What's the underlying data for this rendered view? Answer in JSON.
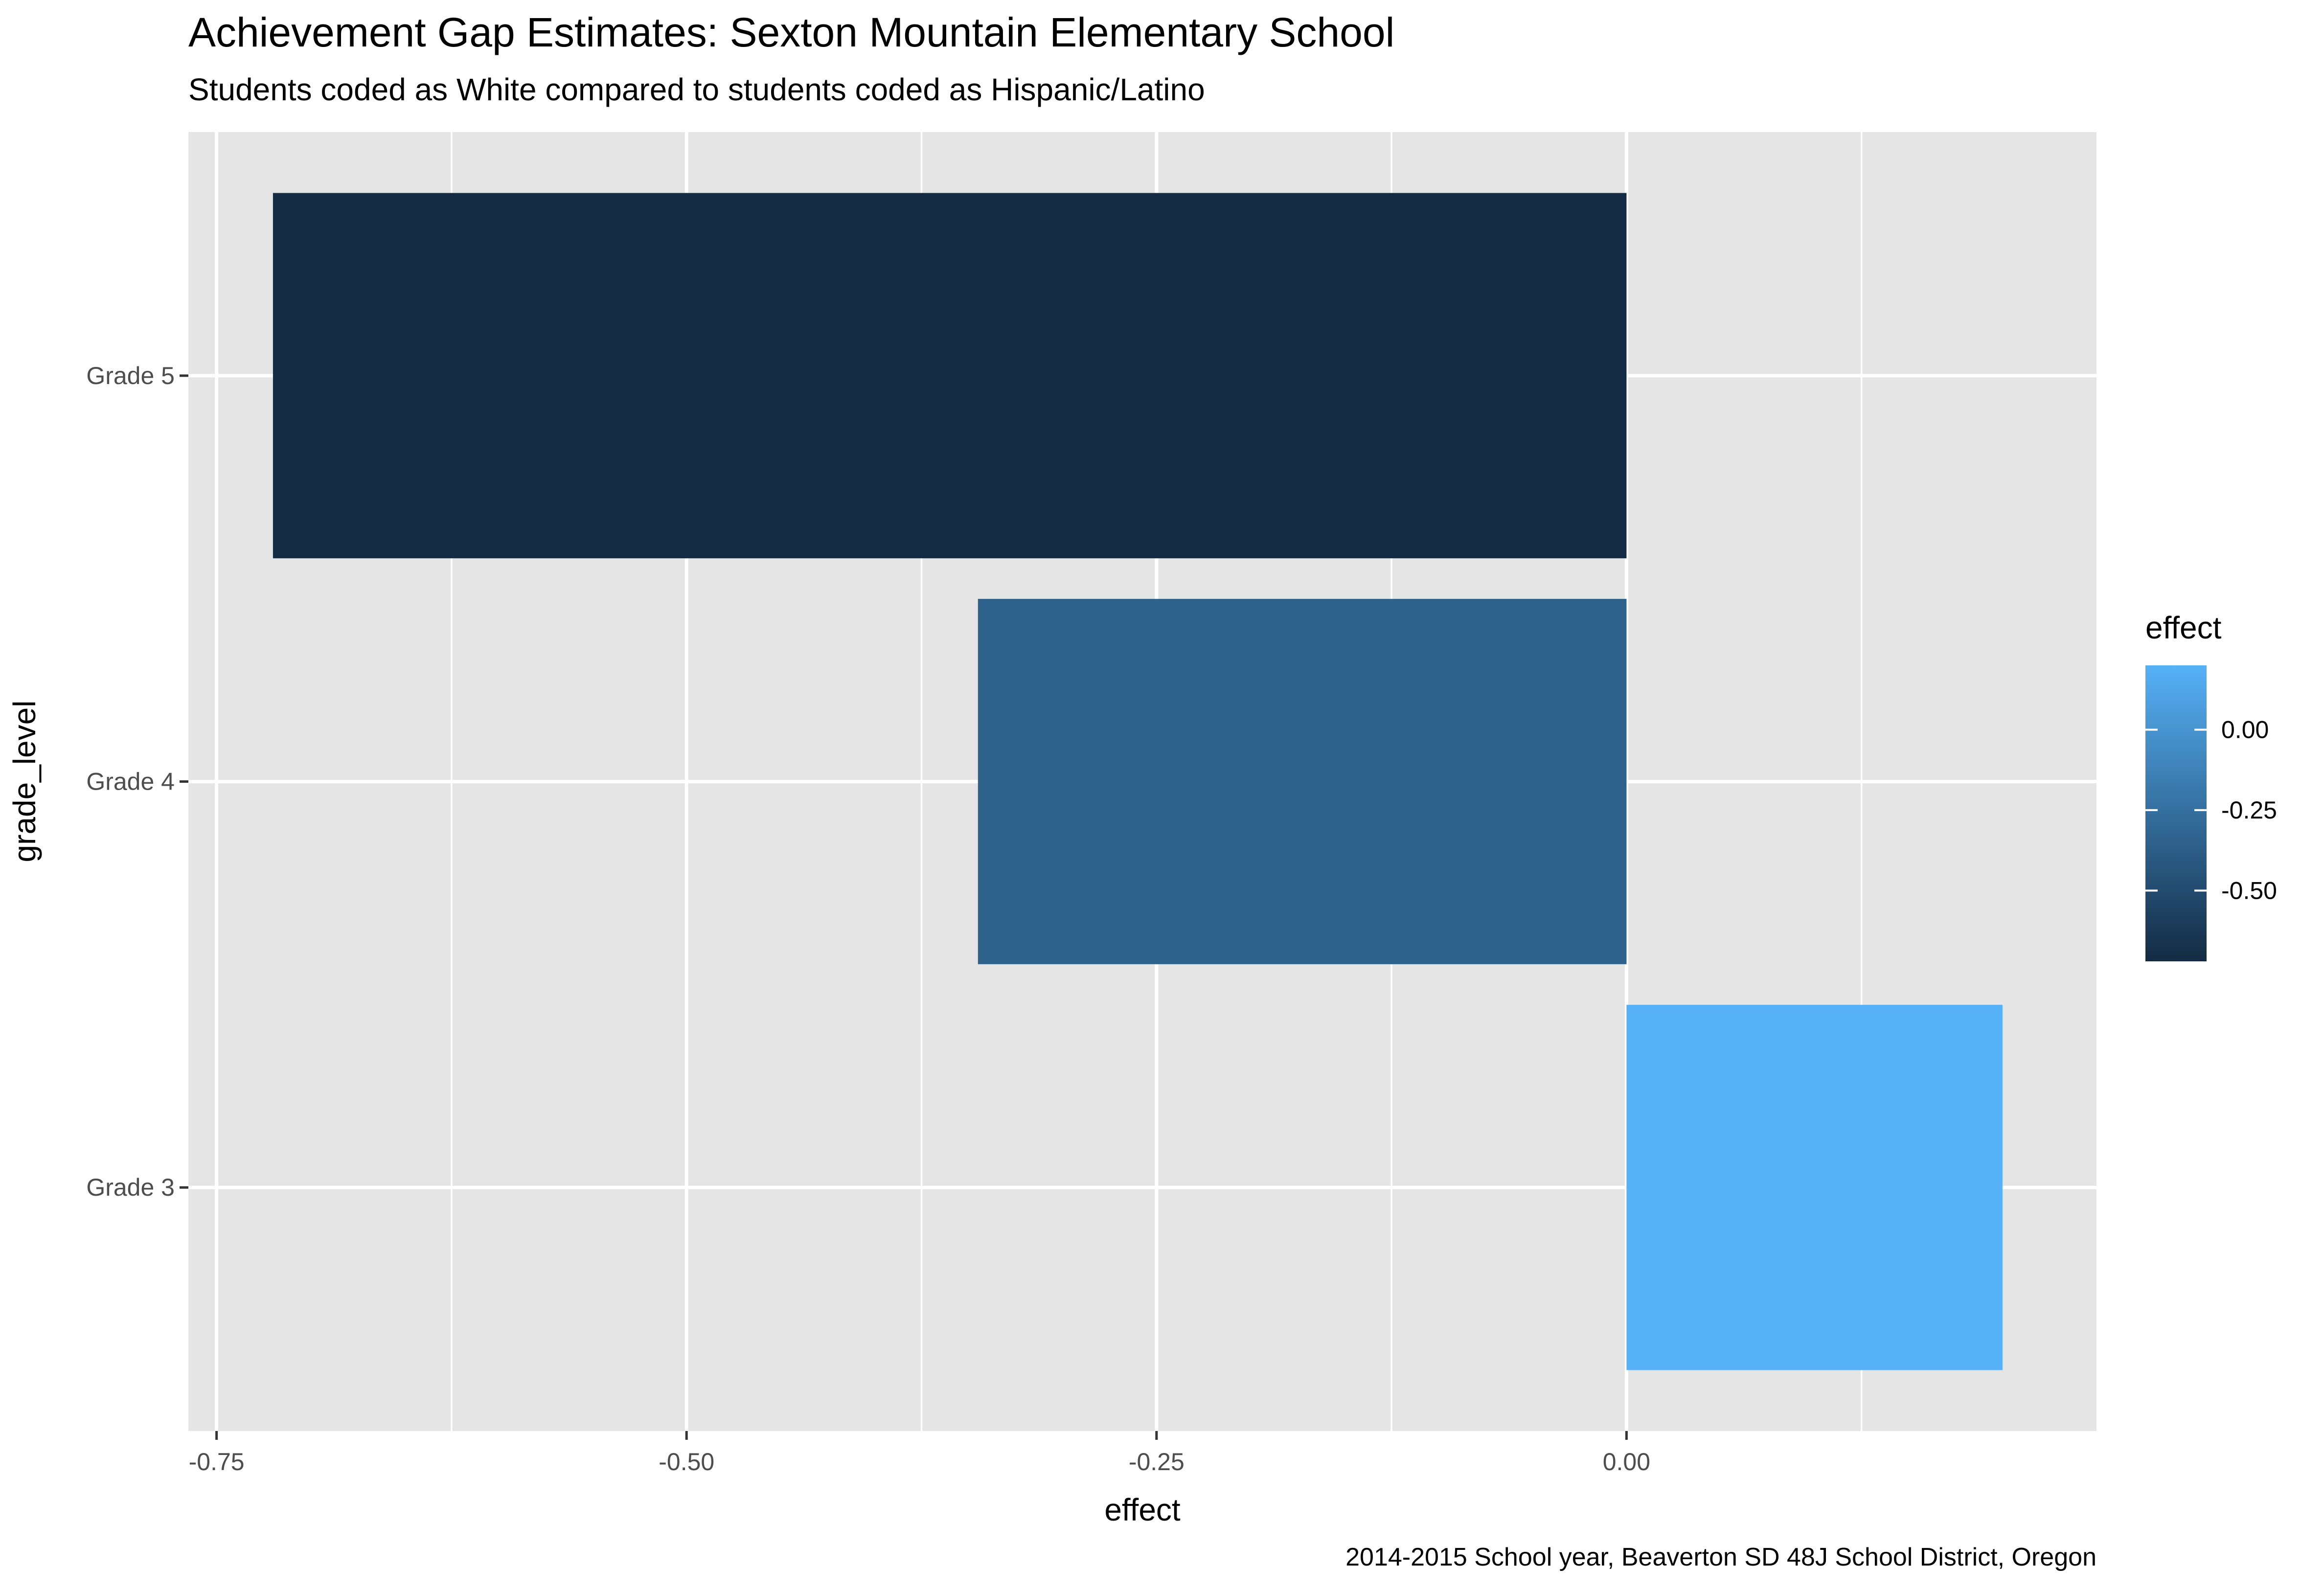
{
  "chart_data": {
    "type": "bar",
    "orientation": "horizontal",
    "title": "Achievement Gap Estimates: Sexton Mountain Elementary School",
    "subtitle": "Students coded as White compared to students coded as Hispanic/Latino",
    "caption": "2014-2015 School year, Beaverton SD 48J School District, Oregon",
    "xlabel": "effect",
    "ylabel": "grade_level",
    "categories": [
      "Grade 3",
      "Grade 4",
      "Grade 5"
    ],
    "values": [
      0.2,
      -0.345,
      -0.72
    ],
    "xlim": [
      -0.765,
      0.25
    ],
    "x_ticks": [
      -0.75,
      -0.5,
      -0.25,
      0.0
    ],
    "x_tick_labels": [
      "-0.75",
      "-0.50",
      "-0.25",
      "0.00"
    ],
    "grid": true,
    "legend": {
      "title": "effect",
      "placement": "right",
      "range": [
        -0.72,
        0.2
      ],
      "ticks": [
        0.0,
        -0.25,
        -0.5
      ],
      "tick_labels": [
        "0.00",
        "-0.25",
        "-0.50"
      ],
      "color_low": "#132B43",
      "color_high": "#56B1F7"
    },
    "colors": {
      "panel_background": "#E5E5E5",
      "grid": "#FFFFFF"
    }
  }
}
